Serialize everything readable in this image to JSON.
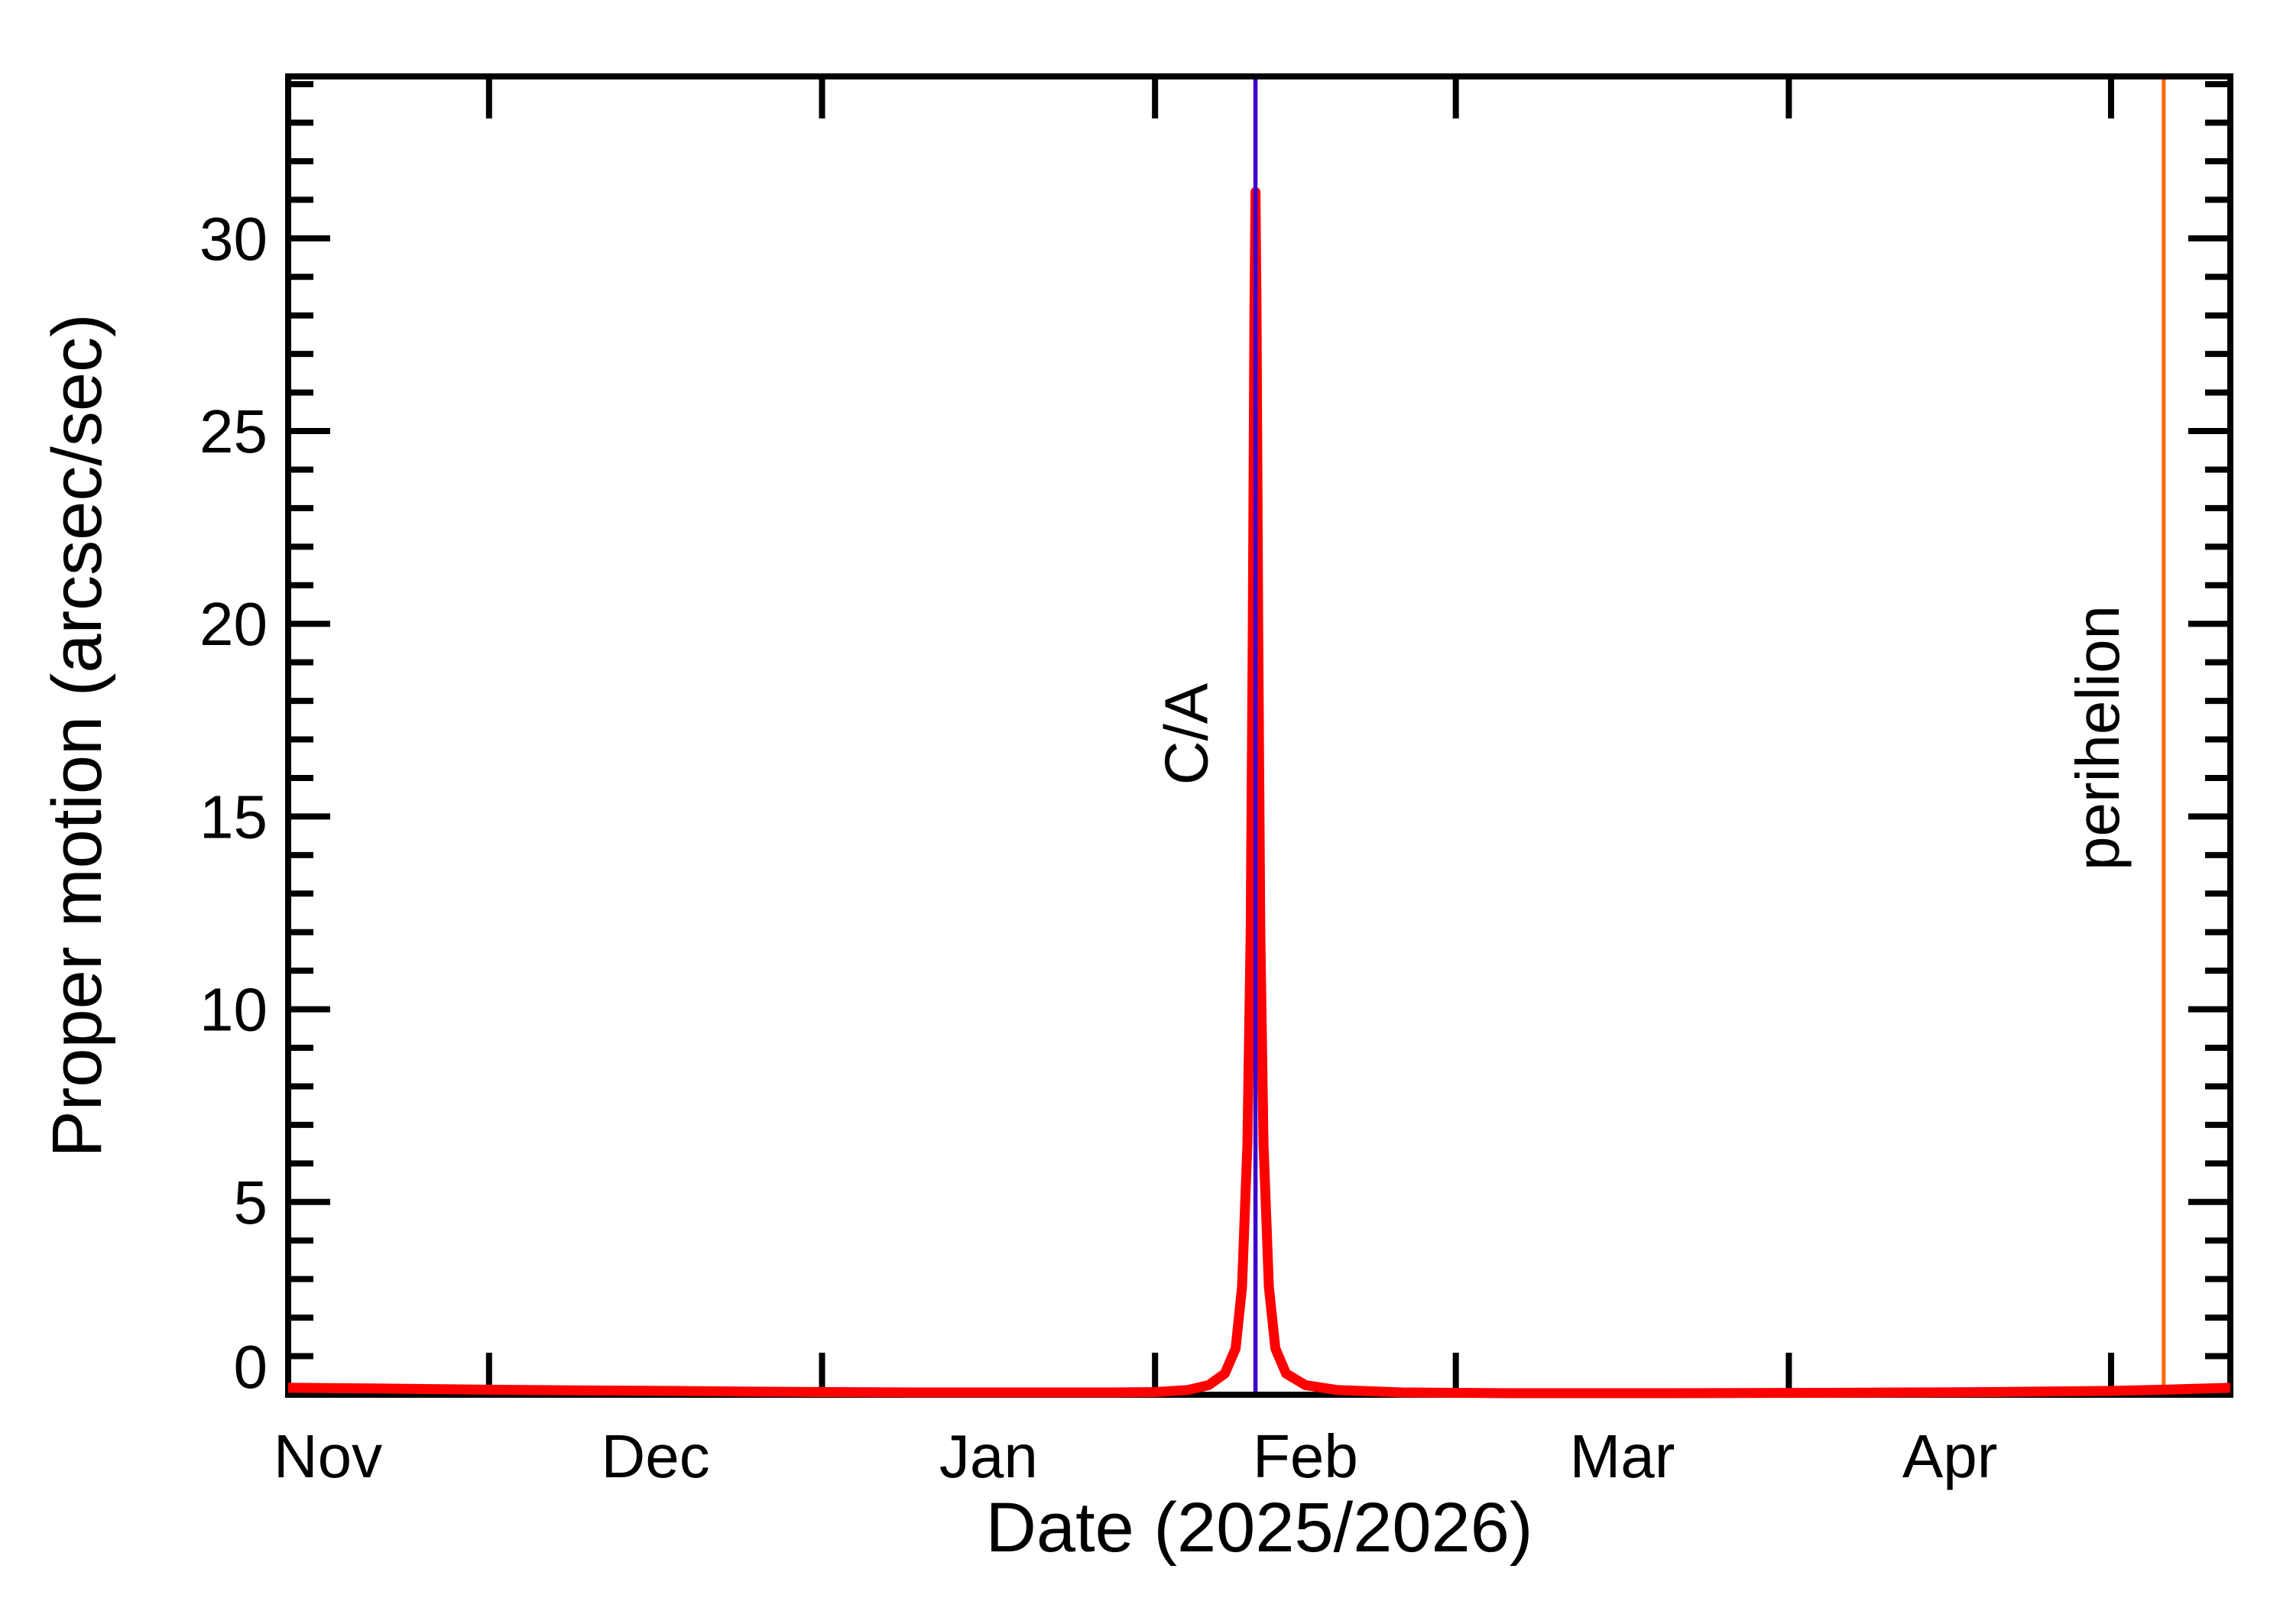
{
  "chart_data": {
    "type": "line",
    "title": "",
    "xlabel": "Date (2025/2026)",
    "ylabel": "Proper motion (arcsec/sec)",
    "x_axis": {
      "unit": "days since 1 Nov 2025",
      "range": [
        11.3,
        192.1
      ],
      "month_boundaries_days": [
        30,
        61,
        92,
        120,
        151,
        181
      ],
      "month_labels": [
        {
          "label": "Nov",
          "day": 15
        },
        {
          "label": "Dec",
          "day": 45.5
        },
        {
          "label": "Jan",
          "day": 76.5
        },
        {
          "label": "Feb",
          "day": 106
        },
        {
          "label": "Mar",
          "day": 135.5
        },
        {
          "label": "Apr",
          "day": 166
        }
      ],
      "minor_ticks": false
    },
    "y_axis": {
      "range": [
        0,
        34.2
      ],
      "major_ticks": [
        0,
        5,
        10,
        15,
        20,
        25,
        30
      ],
      "minor_tick_step": 1
    },
    "grid": false,
    "legend": false,
    "series": [
      {
        "name": "proper-motion",
        "color": "#ff0000",
        "peak": {
          "day": 101.35,
          "value": 31.2
        },
        "points": [
          [
            11.3,
            0.18
          ],
          [
            20,
            0.16
          ],
          [
            30,
            0.13
          ],
          [
            40,
            0.11
          ],
          [
            47,
            0.1
          ],
          [
            55,
            0.08
          ],
          [
            61,
            0.07
          ],
          [
            70,
            0.06
          ],
          [
            80,
            0.06
          ],
          [
            88,
            0.06
          ],
          [
            92,
            0.07
          ],
          [
            95,
            0.12
          ],
          [
            97,
            0.25
          ],
          [
            98.5,
            0.55
          ],
          [
            99.5,
            1.2
          ],
          [
            100.1,
            2.8
          ],
          [
            100.6,
            6.5
          ],
          [
            100.9,
            12.0
          ],
          [
            101.1,
            20.0
          ],
          [
            101.25,
            28.0
          ],
          [
            101.35,
            31.2
          ],
          [
            101.45,
            28.0
          ],
          [
            101.6,
            20.0
          ],
          [
            101.8,
            12.0
          ],
          [
            102.1,
            6.5
          ],
          [
            102.6,
            2.8
          ],
          [
            103.2,
            1.2
          ],
          [
            104.2,
            0.55
          ],
          [
            106,
            0.25
          ],
          [
            109,
            0.12
          ],
          [
            115,
            0.06
          ],
          [
            125,
            0.04
          ],
          [
            140,
            0.04
          ],
          [
            155,
            0.05
          ],
          [
            170,
            0.07
          ],
          [
            181,
            0.1
          ],
          [
            186,
            0.13
          ],
          [
            192.1,
            0.18
          ]
        ]
      }
    ],
    "annotations": [
      {
        "label": "C/A",
        "day": 101.35,
        "color": "#3c00cc"
      },
      {
        "label": "perihelion",
        "day": 185.9,
        "color": "#ff6600"
      }
    ]
  },
  "colors": {
    "axis": "#000000",
    "background": "#ffffff",
    "curve": "#ff0000",
    "close_approach": "#3c00cc",
    "perihelion": "#ff6600"
  }
}
